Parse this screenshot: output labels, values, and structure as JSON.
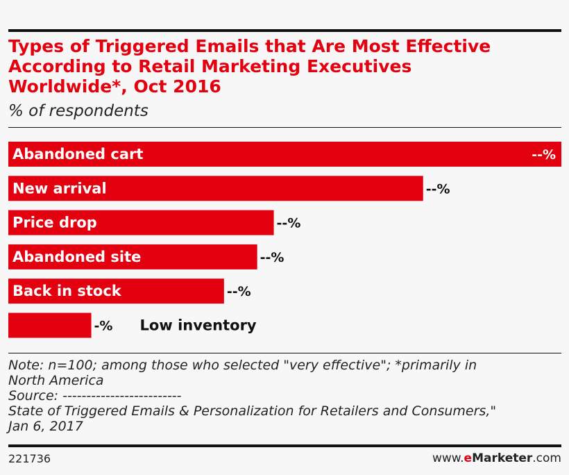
{
  "title_lines": [
    "Types of Triggered Emails that Are Most Effective",
    "According to Retail Marketing Executives",
    "Worldwide*, Oct 2016"
  ],
  "subtitle": "% of respondents",
  "colors": {
    "bar": "#e3000f",
    "text": "#111111"
  },
  "chart_data": {
    "type": "bar",
    "orientation": "horizontal",
    "title": "Types of Triggered Emails that Are Most Effective According to Retail Marketing Executives Worldwide*, Oct 2016",
    "subtitle": "% of respondents",
    "categories": [
      "Abandoned cart",
      "New arrival",
      "Price drop",
      "Abandoned site",
      "Back in stock",
      "Low inventory"
    ],
    "values": [
      100,
      75,
      48,
      45,
      39,
      15
    ],
    "value_labels": [
      "--%",
      "--%",
      "--%",
      "--%",
      "--%",
      "-%"
    ],
    "xlim": [
      0,
      100
    ],
    "grid": false,
    "legend": "none"
  },
  "notes": {
    "note_line1": "Note: n=100; among those who selected \"very effective\"; *primarily in",
    "note_line2": "North America",
    "source": "Source: -------------------------",
    "source_line1": "State of Triggered Emails & Personalization for Retailers and Consumers,\"",
    "source_line2": "Jan 6, 2017"
  },
  "footer": {
    "chart_id": "221736",
    "brand_prefix": "www.",
    "brand_e": "e",
    "brand_name": "Marketer",
    "brand_suffix": ".com"
  }
}
